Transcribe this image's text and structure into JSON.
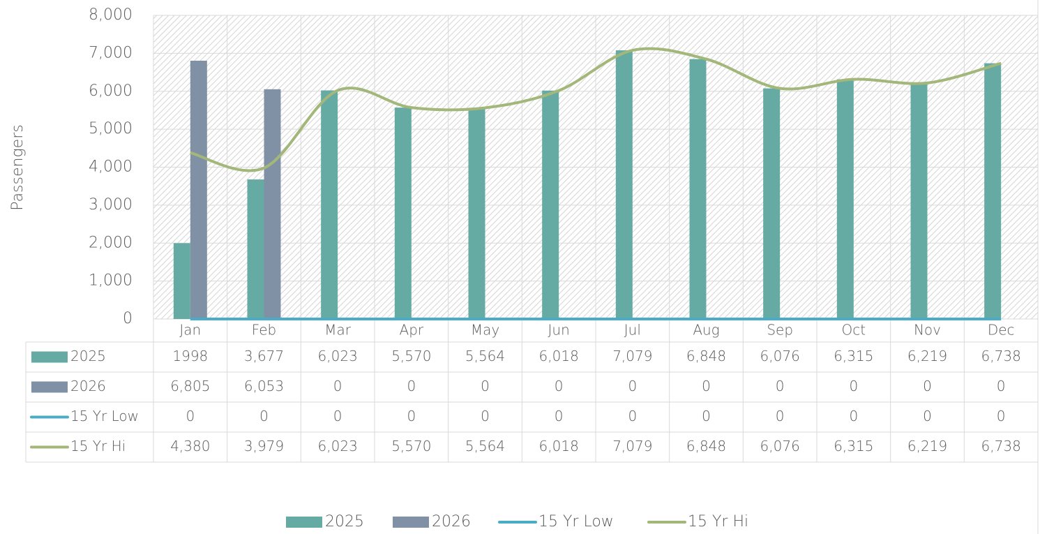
{
  "chart_data": {
    "type": "bar",
    "y_axis_label": "Passengers",
    "categories": [
      "Jan",
      "Feb",
      "Mar",
      "Apr",
      "May",
      "Jun",
      "Jul",
      "Aug",
      "Sep",
      "Oct",
      "Nov",
      "Dec"
    ],
    "series": [
      {
        "name": "2025",
        "type": "bar",
        "color": "#66aba3",
        "values": [
          1998,
          3677,
          6023,
          5570,
          5564,
          6018,
          7079,
          6848,
          6076,
          6315,
          6219,
          6738
        ],
        "value_labels": [
          "1998",
          "3,677",
          "6,023",
          "5,570",
          "5,564",
          "6,018",
          "7,079",
          "6,848",
          "6,076",
          "6,315",
          "6,219",
          "6,738"
        ]
      },
      {
        "name": "2026",
        "type": "bar",
        "color": "#8091a5",
        "values": [
          6805,
          6053,
          0,
          0,
          0,
          0,
          0,
          0,
          0,
          0,
          0,
          0
        ],
        "value_labels": [
          "6,805",
          "6,053",
          "0",
          "0",
          "0",
          "0",
          "0",
          "0",
          "0",
          "0",
          "0",
          "0"
        ]
      },
      {
        "name": "15 Yr Low",
        "type": "line",
        "color": "#4bacc6",
        "values": [
          0,
          0,
          0,
          0,
          0,
          0,
          0,
          0,
          0,
          0,
          0,
          0
        ],
        "value_labels": [
          "0",
          "0",
          "0",
          "0",
          "0",
          "0",
          "0",
          "0",
          "0",
          "0",
          "0",
          "0"
        ]
      },
      {
        "name": "15 Yr Hi",
        "type": "line",
        "smooth": true,
        "color": "#a3b77a",
        "values": [
          4380,
          3979,
          6023,
          5570,
          5564,
          6018,
          7079,
          6848,
          6076,
          6315,
          6219,
          6738
        ],
        "value_labels": [
          "4,380",
          "3,979",
          "6,023",
          "5,570",
          "5,564",
          "6,018",
          "7,079",
          "6,848",
          "6,076",
          "6,315",
          "6,219",
          "6,738"
        ]
      }
    ],
    "ylim": [
      0,
      8000
    ],
    "yticks": [
      0,
      {
        "value": 1000,
        "label": "1,000"
      },
      {
        "value": 2000,
        "label": "2,000"
      },
      {
        "value": 3000,
        "label": "3,000"
      },
      {
        "value": 4000,
        "label": "4,000"
      },
      {
        "value": 5000,
        "label": "5,000"
      },
      {
        "value": 6000,
        "label": "6,000"
      },
      {
        "value": 7000,
        "label": "7,000"
      },
      {
        "value": 8000,
        "label": "8,000"
      }
    ],
    "grid": true,
    "legend": "bottom"
  }
}
